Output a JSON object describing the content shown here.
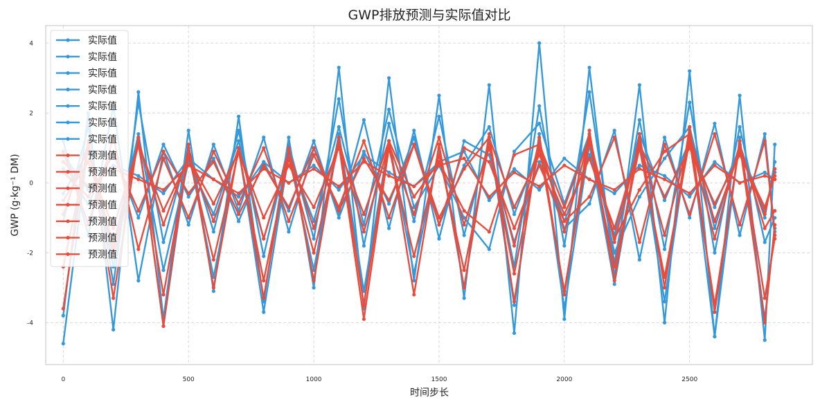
{
  "chart_data": {
    "type": "line",
    "title": "GWP排放预测与实际值对比",
    "xlabel": "时间步长",
    "ylabel": "GWP (g·kg⁻¹ DM)",
    "xlim": [
      -70,
      2990
    ],
    "ylim": [
      -5.2,
      4.5
    ],
    "xticks": [
      0,
      500,
      1000,
      1500,
      2000,
      2500
    ],
    "yticks": [
      -4,
      -2,
      0,
      2,
      4
    ],
    "grid": true,
    "legend_position": "top-left",
    "series": [
      {
        "name": "实际值",
        "color": "#3498db",
        "x": [
          0,
          100,
          200,
          300,
          400,
          500,
          600,
          700,
          800,
          900,
          1000,
          1100,
          1200,
          1300,
          1400,
          1500,
          1600,
          1700,
          1800,
          1900,
          2000,
          2100,
          2200,
          2300,
          2400,
          2500,
          2600,
          2700,
          2800,
          2840
        ],
        "y": [
          -0.3,
          0.9,
          -1.8,
          1.4,
          -2.5,
          0.6,
          -0.9,
          1.2,
          -1.6,
          0.8,
          -1.1,
          1.6,
          -1.2,
          2.1,
          -0.7,
          0.5,
          -1.0,
          -1.9,
          0.9,
          1.7,
          -0.6,
          1.4,
          -2.0,
          -0.4,
          0.7,
          1.6,
          -1.3,
          1.1,
          -1.0,
          0.6
        ]
      },
      {
        "name": "实际值",
        "color": "#3498db",
        "x": [
          0,
          100,
          200,
          300,
          400,
          500,
          600,
          700,
          800,
          900,
          1000,
          1100,
          1200,
          1300,
          1400,
          1500,
          1600,
          1700,
          1800,
          1900,
          2000,
          2100,
          2200,
          2300,
          2400,
          2500,
          2600,
          2700,
          2800,
          2840
        ],
        "y": [
          1.2,
          -1.5,
          2.2,
          -2.8,
          0.9,
          -1.2,
          1.1,
          -0.8,
          1.3,
          -1.4,
          1.0,
          -0.9,
          1.8,
          -1.3,
          1.5,
          -1.6,
          1.2,
          0.8,
          -1.7,
          0.6,
          -1.3,
          -0.6,
          1.5,
          -2.2,
          1.3,
          -1.0,
          1.7,
          -1.5,
          1.4,
          -1.4
        ]
      },
      {
        "name": "实际值",
        "color": "#3498db",
        "x": [
          0,
          100,
          200,
          300,
          400,
          500,
          600,
          700,
          800,
          900,
          1000,
          1100,
          1200,
          1300,
          1400,
          1500,
          1600,
          1700,
          1800,
          1900,
          2000,
          2100,
          2200,
          2300,
          2400,
          2500,
          2600,
          2700,
          2800,
          2840
        ],
        "y": [
          -3.8,
          2.0,
          -4.2,
          2.6,
          -3.9,
          1.5,
          -3.1,
          1.9,
          -3.4,
          1.3,
          -3.0,
          3.3,
          -3.6,
          3.0,
          -2.8,
          2.5,
          -3.3,
          2.8,
          -4.3,
          4.0,
          -3.9,
          3.3,
          -2.7,
          2.8,
          -4.0,
          3.2,
          -4.4,
          2.5,
          -4.5,
          1.1
        ]
      },
      {
        "name": "实际值",
        "color": "#3498db",
        "x": [
          0,
          100,
          200,
          300,
          400,
          500,
          600,
          700,
          800,
          900,
          1000,
          1100,
          1200,
          1300,
          1400,
          1500,
          1600,
          1700,
          1800,
          1900,
          2000,
          2100,
          2200,
          2300,
          2400,
          2500,
          2600,
          2700,
          2800,
          2840
        ],
        "y": [
          0.4,
          -0.6,
          0.9,
          -1.0,
          1.1,
          -0.4,
          0.7,
          -1.1,
          0.6,
          -0.8,
          1.2,
          -1.0,
          0.9,
          -0.6,
          1.3,
          -1.2,
          0.5,
          1.6,
          -0.9,
          1.0,
          -1.1,
          0.8,
          -1.5,
          1.4,
          -0.5,
          1.2,
          -0.7,
          1.0,
          -0.8,
          0.3
        ]
      },
      {
        "name": "实际值",
        "color": "#3498db",
        "x": [
          0,
          100,
          200,
          300,
          400,
          500,
          600,
          700,
          800,
          900,
          1000,
          1100,
          1200,
          1300,
          1400,
          1500,
          1600,
          1700,
          1800,
          1900,
          2000,
          2100,
          2200,
          2300,
          2400,
          2500,
          2600,
          2700,
          2800,
          2840
        ],
        "y": [
          -1.1,
          1.6,
          -2.9,
          2.3,
          -1.7,
          1.0,
          -1.4,
          1.5,
          -2.1,
          1.1,
          -1.6,
          2.4,
          -1.8,
          1.7,
          -1.1,
          1.9,
          -1.5,
          1.2,
          -2.4,
          2.2,
          -1.8,
          2.6,
          -2.3,
          1.8,
          -1.9,
          2.3,
          -2.0,
          1.6,
          -1.7,
          -1.0
        ]
      },
      {
        "name": "实际值",
        "color": "#3498db",
        "x": [
          0,
          100,
          200,
          300,
          400,
          500,
          600,
          700,
          800,
          900,
          1000,
          1100,
          1200,
          1300,
          1400,
          1500,
          1600,
          1700,
          1800,
          1900,
          2000,
          2100,
          2200,
          2300,
          2400,
          2500,
          2600,
          2700,
          2800,
          2840
        ],
        "y": [
          0.8,
          -0.2,
          0.5,
          0.2,
          -0.3,
          0.7,
          0.1,
          -0.4,
          0.6,
          0.0,
          0.5,
          -0.2,
          0.8,
          0.3,
          -0.1,
          0.6,
          0.9,
          -0.5,
          0.4,
          -0.2,
          0.7,
          0.1,
          -0.3,
          0.5,
          0.2,
          -0.4,
          0.6,
          0.0,
          0.3,
          0.1
        ]
      },
      {
        "name": "实际值",
        "color": "#3498db",
        "x": [
          0,
          100,
          200,
          300,
          400,
          500,
          600,
          700,
          800,
          900,
          1000,
          1100,
          1200,
          1300,
          1400,
          1500,
          1600,
          1700,
          1800,
          1900,
          2000,
          2100,
          2200,
          2300,
          2400,
          2500,
          2600,
          2700,
          2800,
          2840
        ],
        "y": [
          -4.6,
          1.1,
          -2.4,
          1.3,
          -4.1,
          0.9,
          -2.7,
          1.0,
          -3.7,
          0.8,
          -2.5,
          1.4,
          -3.1,
          1.2,
          -2.6,
          1.0,
          -3.0,
          1.3,
          -3.5,
          1.4,
          -3.6,
          1.1,
          -2.9,
          1.2,
          -3.4,
          1.5,
          -4.4,
          1.3,
          -3.9,
          -1.3
        ]
      },
      {
        "name": "预测值",
        "color": "#e74c3c",
        "x": [
          0,
          100,
          200,
          300,
          400,
          500,
          600,
          700,
          800,
          900,
          1000,
          1100,
          1200,
          1300,
          1400,
          1500,
          1600,
          1700,
          1800,
          1900,
          2000,
          2100,
          2200,
          2300,
          2400,
          2500,
          2600,
          2700,
          2800,
          2840
        ],
        "y": [
          -0.5,
          0.6,
          -1.3,
          1.1,
          -0.8,
          0.7,
          -0.6,
          0.9,
          -1.0,
          0.5,
          -0.7,
          1.0,
          -0.9,
          1.2,
          -0.4,
          0.6,
          -0.8,
          -1.4,
          0.8,
          1.1,
          -0.7,
          1.3,
          -1.6,
          -0.2,
          0.9,
          1.4,
          -1.1,
          0.9,
          -0.9,
          0.4
        ]
      },
      {
        "name": "预测值",
        "color": "#e74c3c",
        "x": [
          0,
          100,
          200,
          300,
          400,
          500,
          600,
          700,
          800,
          900,
          1000,
          1100,
          1200,
          1300,
          1400,
          1500,
          1600,
          1700,
          1800,
          1900,
          2000,
          2100,
          2200,
          2300,
          2400,
          2500,
          2600,
          2700,
          2800,
          2840
        ],
        "y": [
          0.9,
          -1.2,
          1.3,
          -1.9,
          0.7,
          -1.0,
          0.9,
          -0.6,
          1.0,
          -1.1,
          0.8,
          -0.7,
          1.2,
          -1.0,
          1.1,
          -1.2,
          1.0,
          0.6,
          -1.3,
          0.5,
          -1.1,
          -0.4,
          1.3,
          -1.7,
          1.1,
          -0.9,
          1.4,
          -1.2,
          1.2,
          -1.5
        ]
      },
      {
        "name": "预测值",
        "color": "#e74c3c",
        "x": [
          0,
          100,
          200,
          300,
          400,
          500,
          600,
          700,
          800,
          900,
          1000,
          1100,
          1200,
          1300,
          1400,
          1500,
          1600,
          1700,
          1800,
          1900,
          2000,
          2100,
          2200,
          2300,
          2400,
          2500,
          2600,
          2700,
          2800,
          2840
        ],
        "y": [
          -3.6,
          1.2,
          -3.3,
          1.3,
          -4.1,
          1.1,
          -3.0,
          1.0,
          -3.3,
          1.0,
          -2.8,
          1.3,
          -3.5,
          1.2,
          -3.2,
          1.1,
          -3.0,
          1.4,
          -3.4,
          1.3,
          -3.2,
          1.5,
          -2.8,
          1.4,
          -3.0,
          1.6,
          -3.7,
          1.2,
          -3.3,
          -1.6
        ]
      },
      {
        "name": "预测值",
        "color": "#e74c3c",
        "x": [
          0,
          100,
          200,
          300,
          400,
          500,
          600,
          700,
          800,
          900,
          1000,
          1100,
          1200,
          1300,
          1400,
          1500,
          1600,
          1700,
          1800,
          1900,
          2000,
          2100,
          2200,
          2300,
          2400,
          2500,
          2600,
          2700,
          2800,
          2840
        ],
        "y": [
          0.3,
          -0.4,
          0.8,
          -0.8,
          0.9,
          -0.3,
          0.6,
          -0.9,
          0.5,
          -0.7,
          1.0,
          -0.8,
          0.7,
          -0.5,
          1.1,
          -1.0,
          0.4,
          1.3,
          -0.7,
          0.8,
          -0.9,
          0.7,
          -1.3,
          1.1,
          -0.4,
          1.0,
          -0.6,
          0.8,
          -0.7,
          0.2
        ]
      },
      {
        "name": "预测值",
        "color": "#e74c3c",
        "x": [
          0,
          100,
          200,
          300,
          400,
          500,
          600,
          700,
          800,
          900,
          1000,
          1100,
          1200,
          1300,
          1400,
          1500,
          1600,
          1700,
          1800,
          1900,
          2000,
          2100,
          2200,
          2300,
          2400,
          2500,
          2600,
          2700,
          2800,
          2840
        ],
        "y": [
          -0.9,
          1.1,
          -2.1,
          1.2,
          -1.2,
          0.8,
          -1.1,
          1.0,
          -1.6,
          0.9,
          -1.3,
          1.2,
          -1.4,
          1.1,
          -0.9,
          1.3,
          -1.2,
          1.0,
          -1.8,
          1.2,
          -1.4,
          1.3,
          -1.7,
          1.2,
          -1.5,
          1.3,
          -1.6,
          1.1,
          -1.3,
          -0.8
        ]
      },
      {
        "name": "预测值",
        "color": "#e74c3c",
        "x": [
          0,
          100,
          200,
          300,
          400,
          500,
          600,
          700,
          800,
          900,
          1000,
          1100,
          1200,
          1300,
          1400,
          1500,
          1600,
          1700,
          1800,
          1900,
          2000,
          2100,
          2200,
          2300,
          2400,
          2500,
          2600,
          2700,
          2800,
          2840
        ],
        "y": [
          0.6,
          -0.1,
          0.4,
          0.1,
          -0.2,
          0.5,
          0.1,
          -0.3,
          0.4,
          0.0,
          0.4,
          -0.1,
          0.6,
          0.2,
          -0.1,
          0.5,
          0.7,
          -0.4,
          0.3,
          -0.1,
          0.5,
          0.1,
          -0.2,
          0.4,
          0.1,
          -0.3,
          0.5,
          0.0,
          0.2,
          0.1
        ]
      },
      {
        "name": "预测值",
        "color": "#e74c3c",
        "x": [
          0,
          100,
          200,
          300,
          400,
          500,
          600,
          700,
          800,
          900,
          1000,
          1100,
          1200,
          1300,
          1400,
          1500,
          1600,
          1700,
          1800,
          1900,
          2000,
          2100,
          2200,
          2300,
          2400,
          2500,
          2600,
          2700,
          2800,
          2840
        ],
        "y": [
          -2.4,
          1.0,
          -1.9,
          1.1,
          -3.2,
          0.8,
          -2.2,
          0.9,
          -2.8,
          0.7,
          -2.0,
          1.1,
          -3.9,
          1.0,
          -2.1,
          0.8,
          -2.5,
          1.1,
          -2.6,
          1.0,
          -3.1,
          1.2,
          -2.4,
          1.0,
          -2.7,
          1.2,
          -3.5,
          1.1,
          -4.0,
          -1.2
        ]
      }
    ]
  }
}
